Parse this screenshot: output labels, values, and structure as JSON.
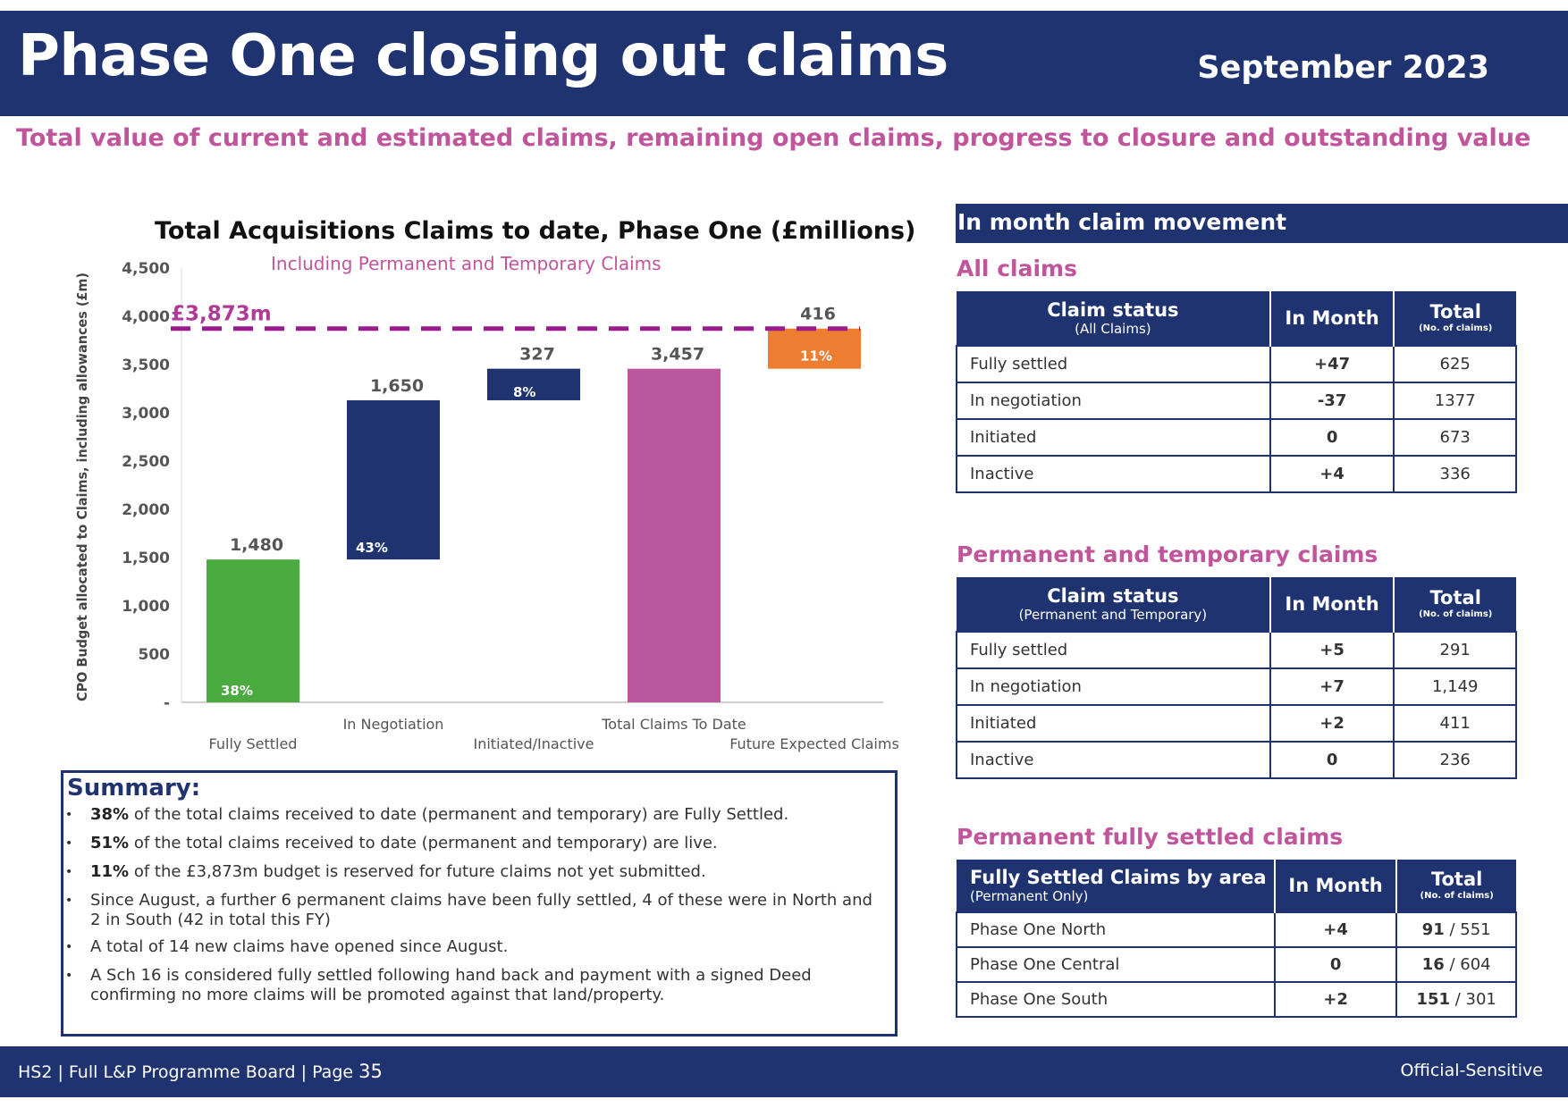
{
  "header": {
    "title": "Phase One closing out claims",
    "date": "September 2023"
  },
  "subtitle": "Total value of current and estimated claims, remaining open claims, progress to closure and outstanding value",
  "chart_data": {
    "type": "waterfall",
    "title": "Total Acquisitions Claims to date, Phase One (£millions)",
    "subtitle": "Including Permanent and Temporary Claims",
    "ylabel": "CPO Budget allocated to Claims, including allowances (£m)",
    "ylim": [
      0,
      4500
    ],
    "yticks": [
      "-",
      "500",
      "1,000",
      "1,500",
      "2,000",
      "2,500",
      "3,000",
      "3,500",
      "4,000",
      "4,500"
    ],
    "categories": [
      "Fully Settled",
      "In Negotiation",
      "Initiated/Inactive",
      "Total Claims To Date",
      "Future Expected Claims"
    ],
    "bars": [
      {
        "category": "Fully Settled",
        "base": 0,
        "value": 1480,
        "label": "1,480",
        "pct": "38%",
        "color": "#4aac3e"
      },
      {
        "category": "In Negotiation",
        "base": 1480,
        "value": 1650,
        "label": "1,650",
        "pct": "43%",
        "color": "#1f3370"
      },
      {
        "category": "Initiated/Inactive",
        "base": 3130,
        "value": 327,
        "label": "327",
        "pct": "8%",
        "color": "#1f3370"
      },
      {
        "category": "Total Claims To Date",
        "base": 0,
        "value": 3457,
        "label": "3,457",
        "pct": "",
        "color": "#b9569c"
      },
      {
        "category": "Future Expected Claims",
        "base": 3457,
        "value": 416,
        "label": "416",
        "pct": "11%",
        "color": "#ed7d31"
      }
    ],
    "budget_line": {
      "value": 3873,
      "label": "£3,873m",
      "color": "#9b1c8c"
    },
    "grid": false
  },
  "summary": {
    "title": "Summary:",
    "items": [
      {
        "bold": "38%",
        "text": " of the total claims received to date (permanent and temporary) are Fully Settled."
      },
      {
        "bold": "51%",
        "text": " of the total claims received to date (permanent and temporary) are live."
      },
      {
        "bold": "11%",
        "text": " of the £3,873m budget is reserved for future claims not yet submitted."
      },
      {
        "bold": "",
        "text": "Since August, a further 6 permanent claims have been fully settled, 4 of these were in North and 2 in South (42 in total this FY)"
      },
      {
        "bold": "",
        "text": "A total of 14 new claims have opened since August."
      },
      {
        "bold": "",
        "text": "A Sch 16 is considered fully settled following hand back and payment with a signed Deed confirming no more claims will be promoted against that land/property."
      }
    ]
  },
  "right_panel": {
    "header": "In month claim movement",
    "all_claims": {
      "title": "All claims",
      "col1": "Claim status",
      "col1_sub": "(All Claims)",
      "col2": "In Month",
      "col3": "Total",
      "col3_sub": "(No. of claims)",
      "rows": [
        {
          "status": "Fully settled",
          "in_month": "+47",
          "total": "625"
        },
        {
          "status": "In negotiation",
          "in_month": "-37",
          "total": "1377"
        },
        {
          "status": "Initiated",
          "in_month": "0",
          "total": "673"
        },
        {
          "status": "Inactive",
          "in_month": "+4",
          "total": "336"
        }
      ]
    },
    "perm_temp": {
      "title": "Permanent and temporary claims",
      "col1": "Claim status",
      "col1_sub": "(Permanent and Temporary)",
      "col2": "In Month",
      "col3": "Total",
      "col3_sub": "(No. of claims)",
      "rows": [
        {
          "status": "Fully settled",
          "in_month": "+5",
          "total": "291"
        },
        {
          "status": "In negotiation",
          "in_month": "+7",
          "total": "1,149"
        },
        {
          "status": "Initiated",
          "in_month": "+2",
          "total": "411"
        },
        {
          "status": "Inactive",
          "in_month": "0",
          "total": "236"
        }
      ]
    },
    "perm_settled": {
      "title": "Permanent fully settled claims",
      "col1": "Fully Settled Claims by area",
      "col1_sub": "(Permanent Only)",
      "col2": "In Month",
      "col3": "Total",
      "col3_sub": "(No. of claims)",
      "rows": [
        {
          "status": "Phase One North",
          "in_month": "+4",
          "settled": "91",
          "total": " / 551"
        },
        {
          "status": "Phase One Central",
          "in_month": "0",
          "settled": "16",
          "total": " / 604"
        },
        {
          "status": "Phase One South",
          "in_month": "+2",
          "settled": "151",
          "total": " / 301"
        }
      ]
    },
    "colors": {
      "navy": "#1f3370",
      "pink": "#c0559c",
      "red": "#e8101a"
    }
  },
  "footer": {
    "left": "HS2 | Full L&P Programme Board | Page",
    "page": "35",
    "right": "Official-Sensitive"
  }
}
